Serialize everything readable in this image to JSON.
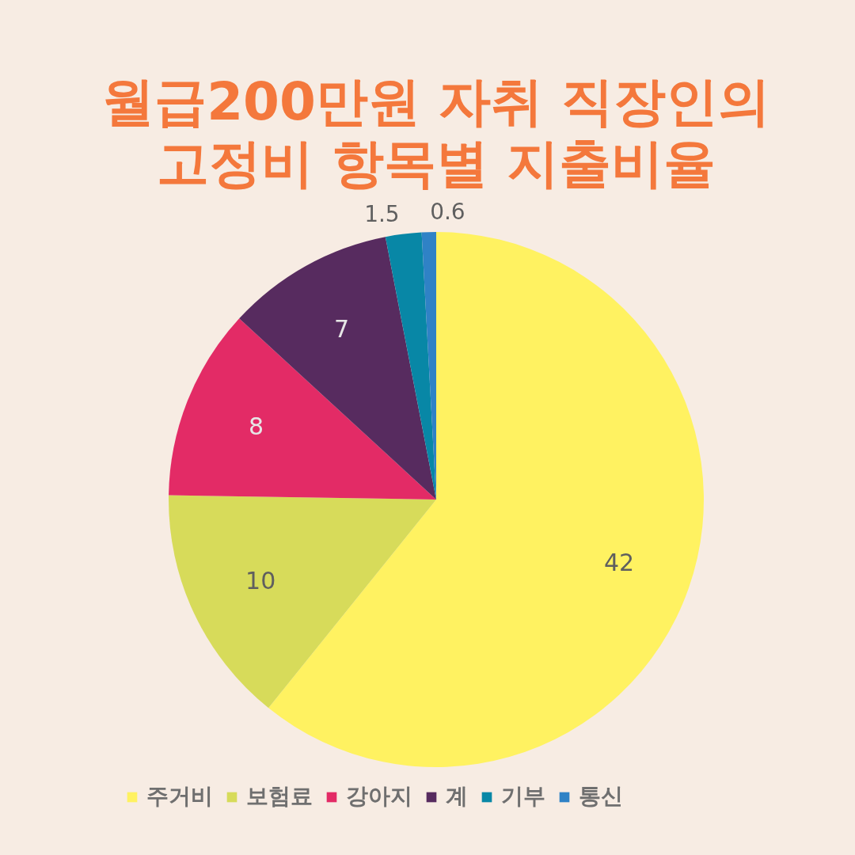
{
  "chart_data": {
    "type": "pie",
    "title": "월급200만원 자취 직장인의\n고정비 항목별 지출비율",
    "categories": [
      "주거비",
      "보험료",
      "강아지",
      "계",
      "기부",
      "통신"
    ],
    "values": [
      42,
      10,
      8,
      7,
      1.5,
      0.6
    ],
    "colors": [
      "#fff261",
      "#d7db5a",
      "#e32b66",
      "#572b5f",
      "#0887a6",
      "#2f82c6"
    ],
    "data_labels": true,
    "legend": "bottom"
  }
}
